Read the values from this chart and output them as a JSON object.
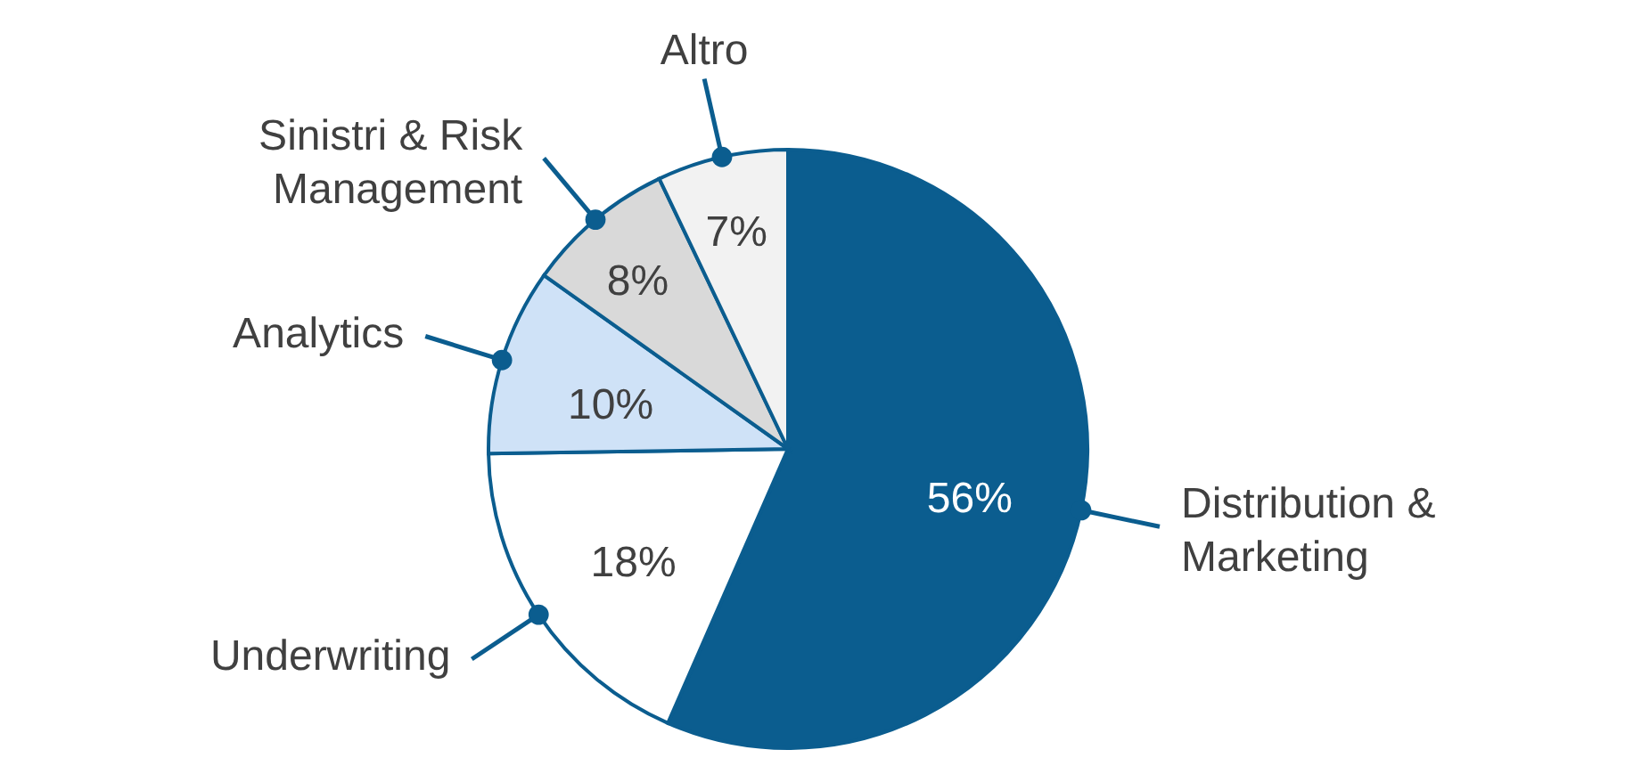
{
  "chart_data": {
    "type": "pie",
    "categories": [
      "Distribution & Marketing",
      "Underwriting",
      "Analytics",
      "Sinistri & Risk Management",
      "Altro"
    ],
    "values": [
      56,
      18,
      10,
      8,
      7
    ],
    "value_labels": [
      "56%",
      "18%",
      "10%",
      "8%",
      "7%"
    ],
    "colors": [
      "#0b5d8f",
      "#ffffff",
      "#cfe2f7",
      "#d9d9d9",
      "#f2f2f2"
    ]
  }
}
